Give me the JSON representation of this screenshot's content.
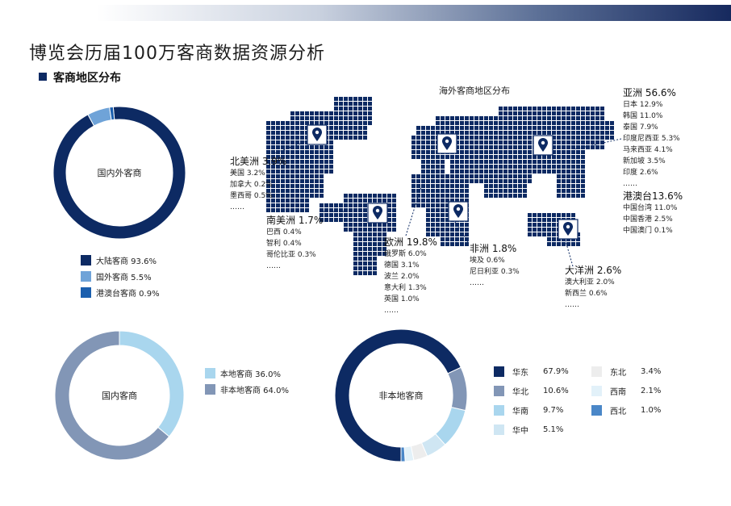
{
  "header": {
    "title": "博览会历届100万客商数据资源分析"
  },
  "section": {
    "title": "客商地区分布"
  },
  "map": {
    "title": "海外客商地区分布",
    "regions": [
      {
        "id": "na",
        "title": "北美洲 3.9%",
        "items": [
          "美国 3.2%",
          "加拿大 0.2%",
          "墨西哥 0.5%",
          "……"
        ]
      },
      {
        "id": "sa",
        "title": "南美洲 1.7%",
        "items": [
          "巴西 0.4%",
          "智利 0.4%",
          "哥伦比亚 0.3%",
          "……"
        ]
      },
      {
        "id": "eu",
        "title": "欧洲 19.8%",
        "items": [
          "俄罗斯 6.0%",
          "德国 3.1%",
          "波兰 2.0%",
          "意大利 1.3%",
          "英国 1.0%",
          "……"
        ]
      },
      {
        "id": "af",
        "title": "非洲 1.8%",
        "items": [
          "埃及 0.6%",
          "尼日利亚 0.3%",
          "……"
        ]
      },
      {
        "id": "oc",
        "title": "大洋洲 2.6%",
        "items": [
          "澳大利亚 2.0%",
          "新西兰 0.6%",
          "……"
        ]
      },
      {
        "id": "as",
        "title": "亚洲 56.6%",
        "items": [
          "日本 12.9%",
          "韩国 11.0%",
          "泰国 7.9%",
          "印度尼西亚 5.3%",
          "马来西亚 4.1%",
          "新加坡 3.5%",
          "印度 2.6%",
          "……"
        ]
      },
      {
        "id": "gat",
        "title": "港澳台13.6%",
        "items": [
          "中国台湾 11.0%",
          "中国香港 2.5%",
          "中国澳门 0.1%"
        ]
      }
    ]
  },
  "chart_data": [
    {
      "type": "pie",
      "title": "国内外客商",
      "series": [
        {
          "name": "大陆客商",
          "value": 93.6,
          "color": "#0d2a63",
          "label": "大陆客商 93.6%"
        },
        {
          "name": "国外客商",
          "value": 5.5,
          "color": "#6fa3d8",
          "label": "国外客商 5.5%"
        },
        {
          "name": "港澳台客商",
          "value": 0.9,
          "color": "#1b5fae",
          "label": "港澳台客商 0.9%"
        }
      ]
    },
    {
      "type": "pie",
      "title": "国内客商",
      "series": [
        {
          "name": "本地客商",
          "value": 36.0,
          "color": "#a9d6ee",
          "label": "本地客商 36.0%"
        },
        {
          "name": "非本地客商",
          "value": 64.0,
          "color": "#8296b6",
          "label": "非本地客商 64.0%"
        }
      ]
    },
    {
      "type": "pie",
      "title": "非本地客商",
      "series": [
        {
          "name": "华东",
          "value": 67.9,
          "color": "#0d2a63",
          "pct": "67.9%"
        },
        {
          "name": "华北",
          "value": 10.6,
          "color": "#8296b6",
          "pct": "10.6%"
        },
        {
          "name": "华南",
          "value": 9.7,
          "color": "#a9d6ee",
          "pct": "9.7%"
        },
        {
          "name": "华中",
          "value": 5.1,
          "color": "#cfe6f3",
          "pct": "5.1%"
        },
        {
          "name": "东北",
          "value": 3.4,
          "color": "#ededed",
          "pct": "3.4%"
        },
        {
          "name": "西南",
          "value": 2.1,
          "color": "#e2f1f9",
          "pct": "2.1%"
        },
        {
          "name": "西北",
          "value": 1.0,
          "color": "#4a87c8",
          "pct": "1.0%"
        }
      ]
    }
  ]
}
